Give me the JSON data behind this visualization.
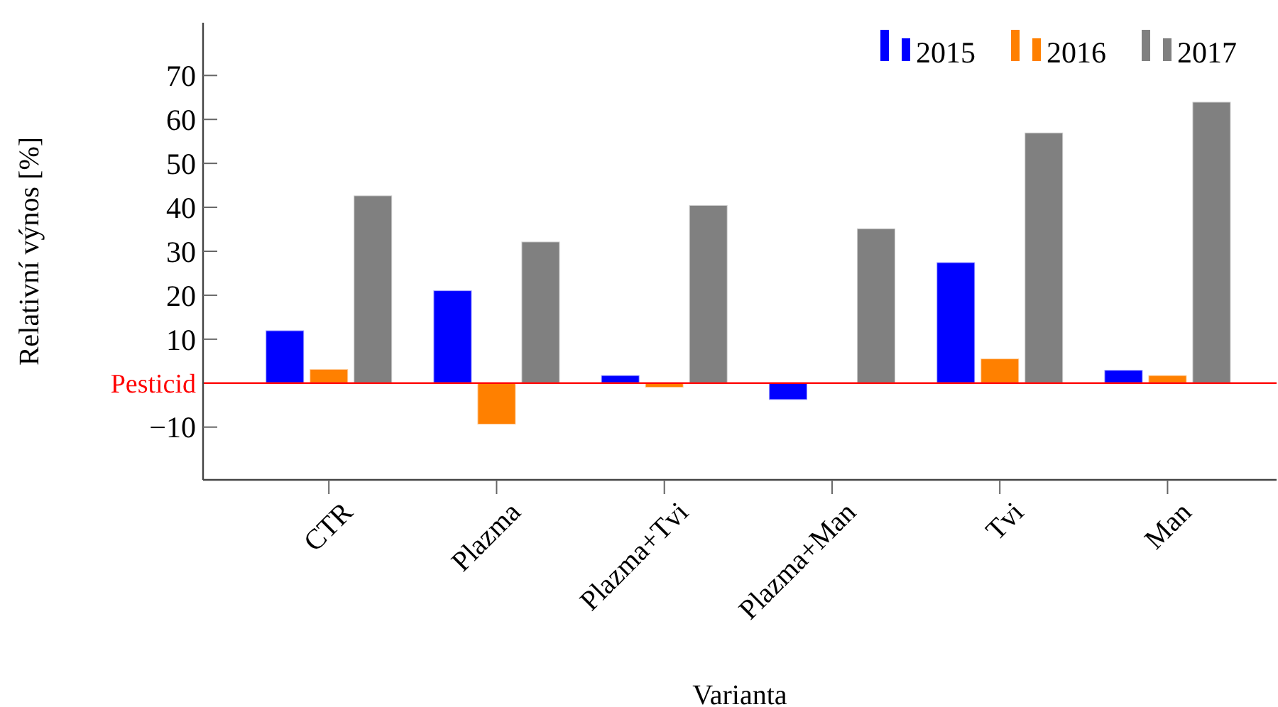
{
  "chart_data": {
    "type": "bar",
    "xlabel": "Varianta",
    "ylabel": "Relativní výnos [%]",
    "categories": [
      "CTR",
      "Plazma",
      "Plazma+Tvi",
      "Plazma+Man",
      "Tvi",
      "Man"
    ],
    "series": [
      {
        "name": "2015",
        "color": "#0000ff",
        "values": [
          12.0,
          21.1,
          1.8,
          -3.8,
          27.5,
          3.0
        ]
      },
      {
        "name": "2016",
        "color": "#ff8000",
        "values": [
          3.2,
          -9.4,
          -1.0,
          0,
          5.6,
          1.8
        ]
      },
      {
        "name": "2017",
        "color": "#808080",
        "values": [
          42.7,
          32.2,
          40.5,
          35.2,
          57.0,
          64.0
        ]
      }
    ],
    "ylim": [
      -22,
      82
    ],
    "yticks": [
      {
        "value": -10,
        "label": "−10"
      },
      10,
      20,
      30,
      40,
      50,
      60,
      70
    ],
    "ref_lines": [
      {
        "axis": "y",
        "value": 0,
        "label": "Pesticid",
        "color": "#ff0000"
      }
    ],
    "grid": false,
    "legend": "top right"
  }
}
